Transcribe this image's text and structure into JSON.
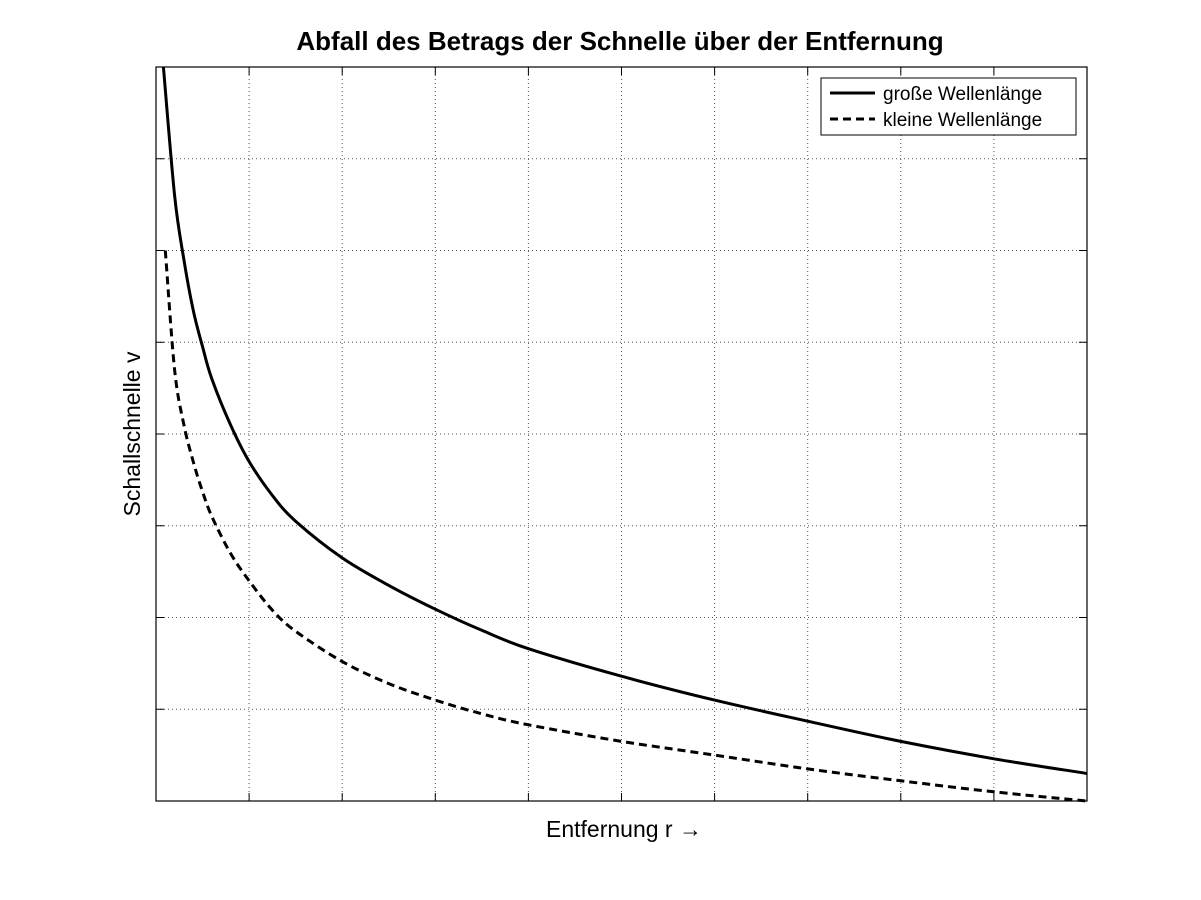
{
  "chart_data": {
    "type": "line",
    "title": "Abfall des Betrags der Schnelle über der Entfernung",
    "xlabel": "Entfernung r →",
    "ylabel": "Schallschnelle v",
    "xlim": [
      0,
      10
    ],
    "ylim": [
      0,
      8
    ],
    "x_ticks": [
      0,
      1,
      2,
      3,
      4,
      5,
      6,
      7,
      8,
      9,
      10
    ],
    "y_ticks": [
      0,
      1,
      2,
      3,
      4,
      5,
      6,
      7,
      8
    ],
    "tick_labels_shown": false,
    "grid": true,
    "grid_style": "dotted",
    "legend_position": "top-right",
    "series": [
      {
        "name": "große Wellenlänge",
        "style": "solid",
        "color": "#000000",
        "x": [
          0.08,
          0.2,
          0.3,
          0.4,
          0.5,
          0.6,
          0.8,
          1.0,
          1.25,
          1.5,
          2.0,
          2.5,
          3.0,
          3.5,
          4.0,
          5.0,
          6.0,
          7.0,
          8.0,
          9.0,
          10.0
        ],
        "y": [
          8.0,
          6.6,
          5.9,
          5.35,
          4.95,
          4.6,
          4.1,
          3.7,
          3.33,
          3.05,
          2.65,
          2.35,
          2.09,
          1.86,
          1.66,
          1.36,
          1.1,
          0.87,
          0.65,
          0.46,
          0.3
        ]
      },
      {
        "name": "kleine Wellenlänge",
        "style": "dashed",
        "color": "#000000",
        "x": [
          0.1,
          0.2,
          0.3,
          0.4,
          0.5,
          0.6,
          0.8,
          1.0,
          1.25,
          1.5,
          2.0,
          2.5,
          3.0,
          3.5,
          4.0,
          5.0,
          6.0,
          7.0,
          8.0,
          9.0,
          10.0
        ],
        "y": [
          6.0,
          4.7,
          4.1,
          3.7,
          3.37,
          3.1,
          2.7,
          2.4,
          2.08,
          1.85,
          1.52,
          1.28,
          1.1,
          0.95,
          0.83,
          0.65,
          0.5,
          0.35,
          0.22,
          0.1,
          0.0
        ]
      }
    ]
  }
}
